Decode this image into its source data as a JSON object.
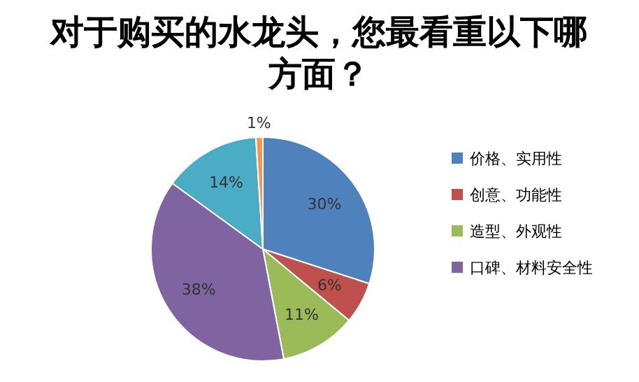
{
  "chart_data": {
    "type": "pie",
    "title": "对于购买的水龙头，您最看重以下哪方面？",
    "categories": [
      "价格、实用性",
      "创意、功能性",
      "造型、外观性",
      "口碑、材料安全性",
      null,
      null
    ],
    "values": [
      30,
      6,
      11,
      38,
      14,
      1
    ],
    "colors": [
      "#4f81bd",
      "#c0504d",
      "#9bbb59",
      "#8064a2",
      "#4bacc6",
      "#f79646"
    ],
    "value_labels": [
      "30%",
      "6%",
      "11%",
      "38%",
      "14%",
      "1%"
    ],
    "legend": "right"
  }
}
